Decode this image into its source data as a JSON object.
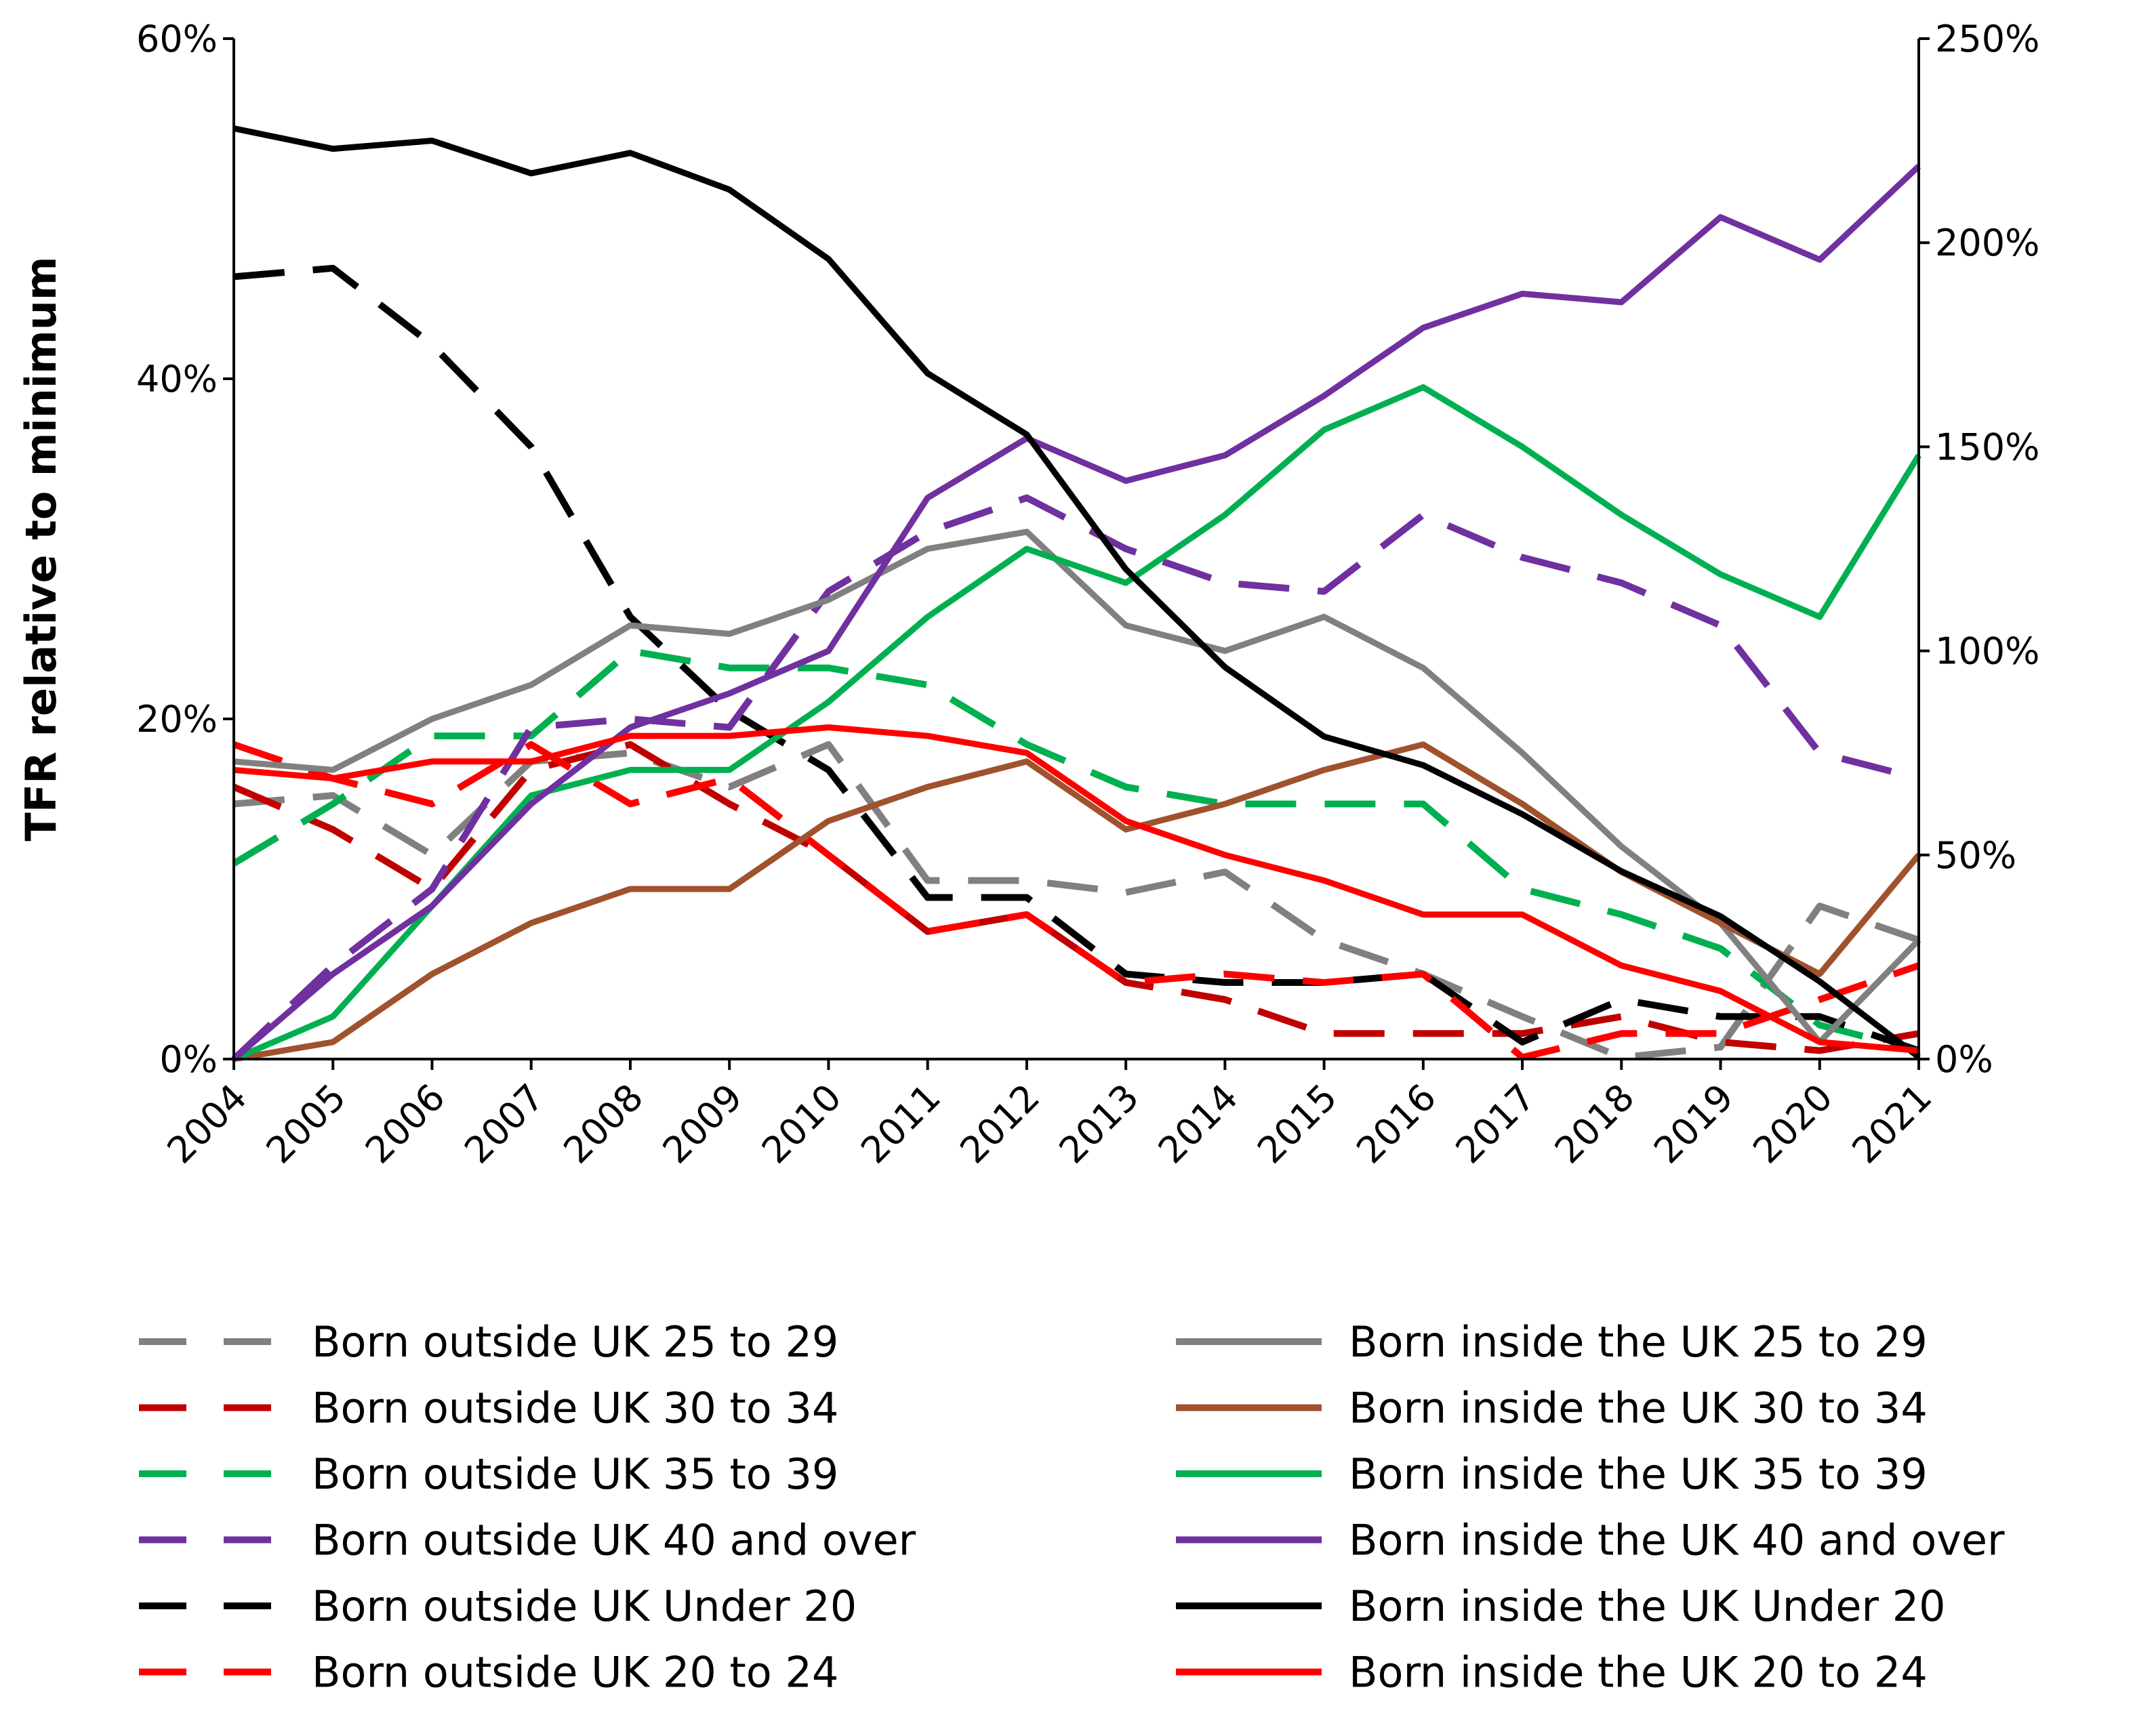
{
  "chart_data": {
    "type": "line",
    "title": "",
    "xlabel": "",
    "ylabel": "TFR relative to minimum",
    "x": [
      "2004",
      "2005",
      "2006",
      "2007",
      "2008",
      "2009",
      "2010",
      "2011",
      "2012",
      "2013",
      "2014",
      "2015",
      "2016",
      "2017",
      "2018",
      "2019",
      "2020",
      "2021"
    ],
    "y_left_ticks": [
      "0%",
      "20%",
      "40%",
      "60%"
    ],
    "y_right_ticks": [
      "0%",
      "50%",
      "100%",
      "150%",
      "200%",
      "250%"
    ],
    "ylim_left": [
      0,
      60
    ],
    "ylim_right": [
      0,
      250
    ],
    "series": [
      {
        "name": "Born outside UK 25 to 29",
        "color": "#808080",
        "dash": true,
        "axis": "left",
        "values": [
          15,
          15.5,
          12,
          17.5,
          18,
          16,
          18.5,
          10.5,
          10.5,
          9.8,
          11,
          7,
          5,
          2.5,
          0.1,
          0.7,
          9,
          7
        ]
      },
      {
        "name": "Born outside UK 30 to 34",
        "color": "#c00000",
        "dash": true,
        "axis": "left",
        "values": [
          16,
          13.5,
          10,
          17,
          18.5,
          15,
          12,
          7.5,
          8.5,
          4.5,
          3.5,
          1.5,
          1.5,
          1.5,
          2.5,
          1,
          0.5,
          1.5
        ]
      },
      {
        "name": "Born outside UK 35 to 39",
        "color": "#00b050",
        "dash": true,
        "axis": "left",
        "values": [
          11.5,
          15,
          19,
          19,
          24,
          23,
          23,
          22,
          18.5,
          16,
          15,
          15,
          15,
          10,
          8.5,
          6.5,
          2,
          0.5
        ]
      },
      {
        "name": "Born outside UK 40 and over",
        "color": "#7030a0",
        "dash": true,
        "axis": "left",
        "values": [
          0,
          5.5,
          10,
          19.5,
          20,
          19.5,
          27.5,
          31,
          33,
          30,
          28,
          27.5,
          32,
          29.5,
          28,
          25.5,
          18,
          16.5
        ]
      },
      {
        "name": "Born outside UK Under 20",
        "color": "#000000",
        "dash": true,
        "axis": "left",
        "values": [
          46,
          46.5,
          42,
          36,
          26,
          20.5,
          17,
          9.5,
          9.5,
          5,
          4.5,
          4.5,
          5,
          1,
          3.5,
          2.5,
          2.5,
          0.5
        ]
      },
      {
        "name": "Born outside UK 20 to 24",
        "color": "#ff0000",
        "dash": true,
        "axis": "left",
        "values": [
          18.5,
          16.5,
          15,
          18.5,
          15,
          16.5,
          12,
          7.5,
          8.5,
          4.5,
          5,
          4.5,
          5,
          0.1,
          1.5,
          1.5,
          3.5,
          5.5
        ]
      },
      {
        "name": "Born inside the UK 25 to 29",
        "color": "#808080",
        "dash": false,
        "axis": "left",
        "values": [
          17.5,
          17,
          20,
          22,
          25.5,
          25,
          27,
          30,
          31,
          25.5,
          24,
          26,
          23,
          18,
          12.5,
          8,
          1,
          7
        ]
      },
      {
        "name": "Born inside the UK 30 to 34",
        "color": "#a0522d",
        "dash": false,
        "axis": "left",
        "values": [
          0,
          1,
          5,
          8,
          10,
          10,
          14,
          16,
          17.5,
          13.5,
          15,
          17,
          18.5,
          15,
          11,
          8,
          5,
          12
        ]
      },
      {
        "name": "Born inside the UK 35 to 39",
        "color": "#00b050",
        "dash": false,
        "axis": "left",
        "values": [
          0,
          2.5,
          9,
          15.5,
          17,
          17,
          21,
          26,
          30,
          28,
          32,
          37,
          39.5,
          36,
          32,
          28.5,
          26,
          35.5
        ]
      },
      {
        "name": "Born inside the UK 40 and over",
        "color": "#7030a0",
        "dash": false,
        "axis": "left",
        "values": [
          0,
          5,
          9,
          15,
          19.5,
          21.5,
          24,
          33,
          36.5,
          34,
          35.5,
          39,
          43,
          45,
          44.5,
          49.5,
          47,
          52.5
        ]
      },
      {
        "name": "Born inside the UK Under 20",
        "color": "#000000",
        "dash": false,
        "axis": "right",
        "values": [
          228,
          223,
          225,
          217,
          222,
          213,
          196,
          168,
          153,
          120,
          96,
          79,
          72,
          60,
          46,
          35,
          19,
          0.5
        ]
      },
      {
        "name": "Born inside the UK 20 to 24",
        "color": "#ff0000",
        "dash": false,
        "axis": "left",
        "values": [
          17,
          16.5,
          17.5,
          17.5,
          19,
          19,
          19.5,
          19,
          18,
          14,
          12,
          10.5,
          8.5,
          8.5,
          5.5,
          4,
          1,
          0.5
        ]
      }
    ]
  }
}
